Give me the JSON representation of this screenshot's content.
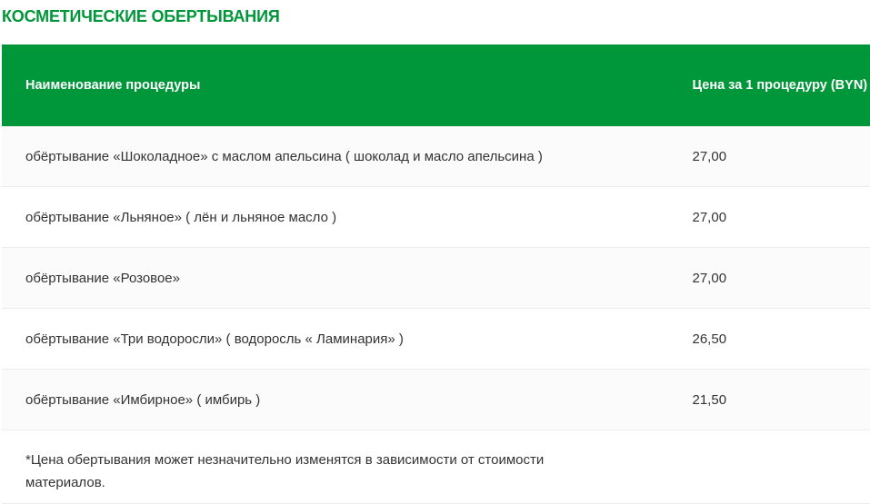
{
  "title": "КОСМЕТИЧЕСКИЕ ОБЕРТЫВАНИЯ",
  "table": {
    "headers": [
      "Наименование процедуры",
      "Цена за 1 процедуру (BYN)"
    ],
    "rows": [
      {
        "name": "обёртывание «Шоколадное» с маслом апельсина ( шоколад и масло апельсина )",
        "price": "27,00"
      },
      {
        "name": "обёртывание «Льняное» ( лён и льняное масло )",
        "price": "27,00"
      },
      {
        "name": "обёртывание «Розовое»",
        "price": "27,00"
      },
      {
        "name": "обёртывание «Три водоросли» ( водоросль « Ламинария» )",
        "price": "26,50"
      },
      {
        "name": "обёртывание «Имбирное» ( имбирь )",
        "price": "21,50"
      }
    ],
    "note": "*Цена обертывания может незначительно изменятся в зависимости от стоимости материалов."
  },
  "colors": {
    "accent": "#00963a"
  }
}
